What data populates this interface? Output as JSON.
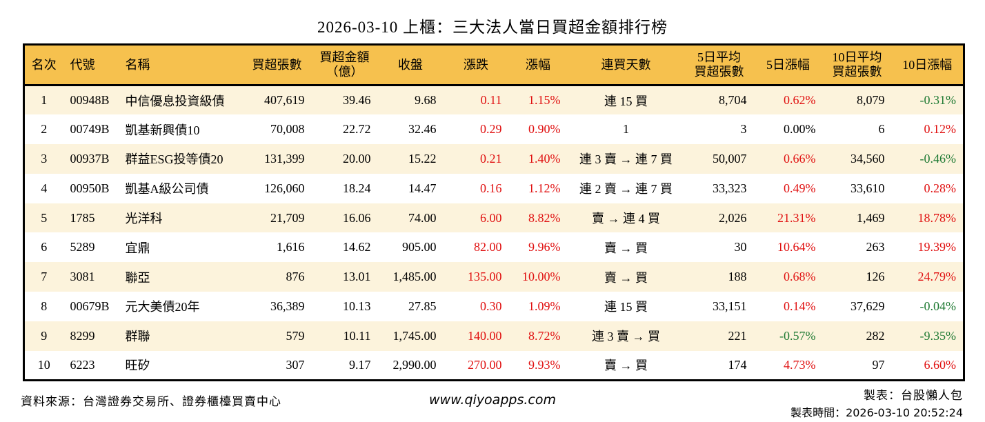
{
  "title": "2026-03-10 上櫃：三大法人當日買超金額排行榜",
  "colors": {
    "up": "#e01010",
    "down": "#1f7a33",
    "header-bg": "#f6c14e",
    "stripe-bg": "#fcf3dc",
    "border": "#000000"
  },
  "chart_data": {
    "type": "table",
    "columns": [
      {
        "key": "rank",
        "label": "名次"
      },
      {
        "key": "code",
        "label": "代號"
      },
      {
        "key": "name",
        "label": "名稱"
      },
      {
        "key": "volume",
        "label": "買超張數"
      },
      {
        "key": "amount",
        "label": "買超金額\n（億）"
      },
      {
        "key": "close",
        "label": "收盤"
      },
      {
        "key": "change",
        "label": "漲跌"
      },
      {
        "key": "change_pct",
        "label": "漲幅"
      },
      {
        "key": "streak",
        "label": "連買天數"
      },
      {
        "key": "avg5",
        "label": "5日平均\n買超張數"
      },
      {
        "key": "pct5",
        "label": "5日漲幅"
      },
      {
        "key": "avg10",
        "label": "10日平均\n買超張數"
      },
      {
        "key": "pct10",
        "label": "10日漲幅"
      }
    ],
    "rows": [
      {
        "rank": "1",
        "code": "00948B",
        "name": "中信優息投資級債",
        "volume": "407,619",
        "amount": "39.46",
        "close": "9.68",
        "change": {
          "v": "0.11",
          "c": "up"
        },
        "change_pct": {
          "v": "1.15%",
          "c": "up"
        },
        "streak": "連 15 買",
        "avg5": "8,704",
        "pct5": {
          "v": "0.62%",
          "c": "up"
        },
        "avg10": "8,079",
        "pct10": {
          "v": "-0.31%",
          "c": "down"
        }
      },
      {
        "rank": "2",
        "code": "00749B",
        "name": "凱基新興債10",
        "volume": "70,008",
        "amount": "22.72",
        "close": "32.46",
        "change": {
          "v": "0.29",
          "c": "up"
        },
        "change_pct": {
          "v": "0.90%",
          "c": "up"
        },
        "streak": "1",
        "avg5": "3",
        "pct5": {
          "v": "0.00%",
          "c": "flat"
        },
        "avg10": "6",
        "pct10": {
          "v": "0.12%",
          "c": "up"
        }
      },
      {
        "rank": "3",
        "code": "00937B",
        "name": "群益ESG投等債20",
        "volume": "131,399",
        "amount": "20.00",
        "close": "15.22",
        "change": {
          "v": "0.21",
          "c": "up"
        },
        "change_pct": {
          "v": "1.40%",
          "c": "up"
        },
        "streak": "連 3 賣 → 連 7 買",
        "avg5": "50,007",
        "pct5": {
          "v": "0.66%",
          "c": "up"
        },
        "avg10": "34,560",
        "pct10": {
          "v": "-0.46%",
          "c": "down"
        }
      },
      {
        "rank": "4",
        "code": "00950B",
        "name": "凱基A級公司債",
        "volume": "126,060",
        "amount": "18.24",
        "close": "14.47",
        "change": {
          "v": "0.16",
          "c": "up"
        },
        "change_pct": {
          "v": "1.12%",
          "c": "up"
        },
        "streak": "連 2 賣 → 連 7 買",
        "avg5": "33,323",
        "pct5": {
          "v": "0.49%",
          "c": "up"
        },
        "avg10": "33,610",
        "pct10": {
          "v": "0.28%",
          "c": "up"
        }
      },
      {
        "rank": "5",
        "code": "1785",
        "name": "光洋科",
        "volume": "21,709",
        "amount": "16.06",
        "close": "74.00",
        "change": {
          "v": "6.00",
          "c": "up"
        },
        "change_pct": {
          "v": "8.82%",
          "c": "up"
        },
        "streak": "賣 → 連 4 買",
        "avg5": "2,026",
        "pct5": {
          "v": "21.31%",
          "c": "up"
        },
        "avg10": "1,469",
        "pct10": {
          "v": "18.78%",
          "c": "up"
        }
      },
      {
        "rank": "6",
        "code": "5289",
        "name": "宜鼎",
        "volume": "1,616",
        "amount": "14.62",
        "close": "905.00",
        "change": {
          "v": "82.00",
          "c": "up"
        },
        "change_pct": {
          "v": "9.96%",
          "c": "up"
        },
        "streak": "賣 → 買",
        "avg5": "30",
        "pct5": {
          "v": "10.64%",
          "c": "up"
        },
        "avg10": "263",
        "pct10": {
          "v": "19.39%",
          "c": "up"
        }
      },
      {
        "rank": "7",
        "code": "3081",
        "name": "聯亞",
        "volume": "876",
        "amount": "13.01",
        "close": "1,485.00",
        "change": {
          "v": "135.00",
          "c": "up"
        },
        "change_pct": {
          "v": "10.00%",
          "c": "up"
        },
        "streak": "賣 → 買",
        "avg5": "188",
        "pct5": {
          "v": "0.68%",
          "c": "up"
        },
        "avg10": "126",
        "pct10": {
          "v": "24.79%",
          "c": "up"
        }
      },
      {
        "rank": "8",
        "code": "00679B",
        "name": "元大美債20年",
        "volume": "36,389",
        "amount": "10.13",
        "close": "27.85",
        "change": {
          "v": "0.30",
          "c": "up"
        },
        "change_pct": {
          "v": "1.09%",
          "c": "up"
        },
        "streak": "連 15 買",
        "avg5": "33,151",
        "pct5": {
          "v": "0.14%",
          "c": "up"
        },
        "avg10": "37,629",
        "pct10": {
          "v": "-0.04%",
          "c": "down"
        }
      },
      {
        "rank": "9",
        "code": "8299",
        "name": "群聯",
        "volume": "579",
        "amount": "10.11",
        "close": "1,745.00",
        "change": {
          "v": "140.00",
          "c": "up"
        },
        "change_pct": {
          "v": "8.72%",
          "c": "up"
        },
        "streak": "連 3 賣 → 買",
        "avg5": "221",
        "pct5": {
          "v": "-0.57%",
          "c": "down"
        },
        "avg10": "282",
        "pct10": {
          "v": "-9.35%",
          "c": "down"
        }
      },
      {
        "rank": "10",
        "code": "6223",
        "name": "旺矽",
        "volume": "307",
        "amount": "9.17",
        "close": "2,990.00",
        "change": {
          "v": "270.00",
          "c": "up"
        },
        "change_pct": {
          "v": "9.93%",
          "c": "up"
        },
        "streak": "賣 → 買",
        "avg5": "174",
        "pct5": {
          "v": "4.73%",
          "c": "up"
        },
        "avg10": "97",
        "pct10": {
          "v": "6.60%",
          "c": "up"
        }
      }
    ]
  },
  "footer": {
    "source": "資料來源：台灣證券交易所、證券櫃檯買賣中心",
    "site": "www.qiyoapps.com",
    "maker": "製表：台股懶人包",
    "made_at": "製表時間：2026-03-10 20:52:24"
  }
}
